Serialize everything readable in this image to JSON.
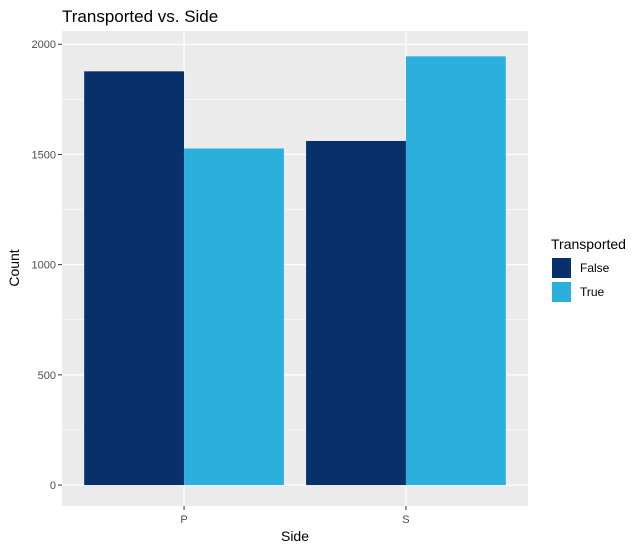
{
  "chart_data": {
    "type": "bar",
    "title": "Transported vs. Side",
    "xlabel": "Side",
    "ylabel": "Count",
    "categories": [
      "P",
      "S"
    ],
    "series": [
      {
        "name": "False",
        "values": [
          1877,
          1561
        ],
        "color": "#08306B"
      },
      {
        "name": "True",
        "values": [
          1527,
          1945
        ],
        "color": "#2BB0DD"
      }
    ],
    "ylim": [
      -95,
      2060
    ],
    "yticks": [
      0,
      500,
      1000,
      1500,
      2000
    ],
    "ytick_labels": [
      "0",
      "500",
      "1000",
      "1500",
      "2000"
    ],
    "legend": {
      "title": "Transported",
      "position": "right"
    },
    "grid": true,
    "panel_background": "#EBEBEB"
  }
}
